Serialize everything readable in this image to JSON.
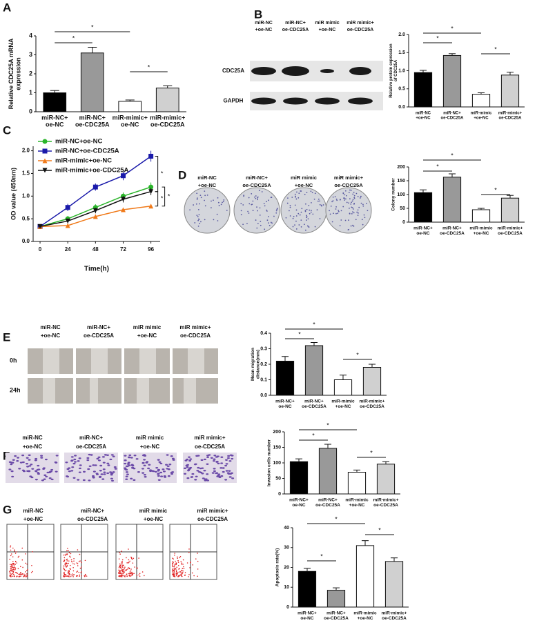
{
  "panel_labels": [
    "A",
    "B",
    "C",
    "D",
    "E",
    "F",
    "G"
  ],
  "blot": {
    "lanes": [
      [
        "miR-NC",
        "+oe-NC"
      ],
      [
        "miR-NC+",
        "oe-CDC25A"
      ],
      [
        "miR mimic",
        "+oe-NC"
      ],
      [
        "miR mimic+",
        "oe-CDC25A"
      ]
    ],
    "rows": [
      "CDC25A",
      "GAPDH"
    ]
  },
  "colony_labels": [
    [
      "miR-NC",
      "+oe-NC"
    ],
    [
      "miR-NC+",
      "oe-CDC25A"
    ],
    [
      "miR mimic",
      "+oe-NC"
    ],
    [
      "miR mimic+",
      "oe-CDC25A"
    ]
  ],
  "wound": {
    "lanes": [
      [
        "miR-NC",
        "+oe-NC"
      ],
      [
        "miR-NC+",
        "oe-CDC25A"
      ],
      [
        "miR mimic",
        "+oe-NC"
      ],
      [
        "miR mimic+",
        "oe-CDC25A"
      ]
    ],
    "rows": [
      "0h",
      "24h"
    ]
  },
  "transwell_labels": [
    [
      "miR-NC",
      "+oe-NC"
    ],
    [
      "miR-NC+",
      "oe-CDC25A"
    ],
    [
      "miR mimic",
      "+oe-NC"
    ],
    [
      "miR mimic+",
      "oe-CDC25A"
    ]
  ],
  "flow_labels": [
    [
      "miR-NC",
      "+oe-NC"
    ],
    [
      "miR-NC+",
      "oe-CDC25A"
    ],
    [
      "miR mimic",
      "+oe-NC"
    ],
    [
      "miR mimic+",
      "oe-CDC25A"
    ]
  ],
  "chart_data": [
    {
      "type": "bar",
      "ylabel": [
        "Relative CDC25A mRNA",
        "expression"
      ],
      "categories": [
        [
          "miR-NC+",
          "oe-NC"
        ],
        [
          "miR-NC+",
          "oe-CDC25A"
        ],
        [
          "miR-mimic+",
          "oe-NC"
        ],
        [
          "miR-mimic+",
          "oe-CDC25A"
        ]
      ],
      "values": [
        1.0,
        3.1,
        0.55,
        1.25
      ],
      "errors": [
        0.12,
        0.3,
        0.07,
        0.12
      ],
      "colors": [
        "#000000",
        "#999999",
        "#ffffff",
        "#d0d0d0"
      ],
      "ylim": [
        0,
        4
      ],
      "yticks": [
        0,
        1,
        2,
        3,
        4
      ],
      "annotations": [
        "*",
        "*",
        "*"
      ]
    },
    {
      "type": "bar",
      "ylabel": [
        "Relative protein expression",
        "of CDC25A"
      ],
      "categories": [
        [
          "miR-NC",
          "+oe-NC"
        ],
        [
          "miR-NC+",
          "oe-CDC25A"
        ],
        [
          "miR-mimic",
          "+oe-NC"
        ],
        [
          "miR-mimic+",
          "oe-CDC25A"
        ]
      ],
      "values": [
        0.95,
        1.42,
        0.35,
        0.88
      ],
      "errors": [
        0.06,
        0.05,
        0.04,
        0.08
      ],
      "colors": [
        "#000000",
        "#999999",
        "#ffffff",
        "#d0d0d0"
      ],
      "ylim": [
        0,
        2
      ],
      "yticks": [
        {
          "value": 0,
          "label": "0.0"
        },
        0.5,
        {
          "value": 1,
          "label": "1.0"
        },
        1.5,
        {
          "value": 2,
          "label": "2.0"
        }
      ],
      "annotations": [
        "*",
        "*",
        "*"
      ]
    },
    {
      "type": "line",
      "ylabel": [
        "OD value (450nm)"
      ],
      "xlabel": "Time(h)",
      "x": [
        0,
        24,
        48,
        72,
        96
      ],
      "xlim": [
        -6,
        104
      ],
      "xticks": [
        0,
        24,
        48,
        72,
        96
      ],
      "ylim": [
        0,
        2.1
      ],
      "yticks": [
        {
          "value": 0,
          "label": "0.0"
        },
        0.5,
        {
          "value": 1,
          "label": "1.0"
        },
        1.5,
        {
          "value": 2,
          "label": "2.0"
        }
      ],
      "series": [
        {
          "name": "miR-NC+oe-NC",
          "color": "#2bb52b",
          "marker": "circle",
          "values": [
            0.33,
            0.5,
            0.75,
            1.0,
            1.2
          ],
          "errors": [
            0.04,
            0.06,
            0.07,
            0.08,
            0.1
          ]
        },
        {
          "name": "miR-NC+oe-CDC25A",
          "color": "#1a1aaa",
          "marker": "square",
          "values": [
            0.33,
            0.75,
            1.2,
            1.45,
            1.88
          ],
          "errors": [
            0.04,
            0.08,
            0.08,
            0.1,
            0.12
          ]
        },
        {
          "name": "miR-mimic+oe-NC",
          "color": "#f07a1a",
          "marker": "triangle-up",
          "values": [
            0.33,
            0.35,
            0.55,
            0.7,
            0.78
          ],
          "errors": [
            0.03,
            0.04,
            0.04,
            0.04,
            0.04
          ]
        },
        {
          "name": "miR-mimic+oe-CDC25A",
          "color": "#111111",
          "marker": "triangle-down",
          "values": [
            0.33,
            0.45,
            0.68,
            0.93,
            1.1
          ],
          "errors": [
            0.04,
            0.05,
            0.06,
            0.07,
            0.08
          ]
        }
      ],
      "annotations": [
        "*",
        "*",
        "*"
      ]
    },
    {
      "type": "bar",
      "ylabel": [
        "Colony number"
      ],
      "categories": [
        [
          "miR-NC+",
          "oe-NC"
        ],
        [
          "miR-NC+",
          "oe-CDC25A"
        ],
        [
          "miR-mimic",
          "+oe-NC"
        ],
        [
          "miR-mimic+",
          "oe-CDC25A"
        ]
      ],
      "values": [
        107,
        163,
        45,
        87
      ],
      "errors": [
        10,
        12,
        5,
        10
      ],
      "colors": [
        "#000000",
        "#999999",
        "#ffffff",
        "#d0d0d0"
      ],
      "ylim": [
        0,
        200
      ],
      "yticks": [
        0,
        50,
        100,
        150,
        200
      ],
      "annotations": [
        "*",
        "*",
        "*"
      ]
    },
    {
      "type": "bar",
      "ylabel": [
        "Mean  migration",
        "distance(mm)"
      ],
      "categories": [
        [
          "miR-NC+",
          "oe-NC"
        ],
        [
          "miR-NC+",
          "oe-CDC25A"
        ],
        [
          "miR-mimic",
          "+oe-NC"
        ],
        [
          "miR-mimic+",
          "oe-CDC25A"
        ]
      ],
      "values": [
        0.22,
        0.32,
        0.1,
        0.18
      ],
      "errors": [
        0.03,
        0.02,
        0.03,
        0.02
      ],
      "colors": [
        "#000000",
        "#999999",
        "#ffffff",
        "#d0d0d0"
      ],
      "ylim": [
        0,
        0.4
      ],
      "yticks": [
        {
          "value": 0,
          "label": "0.0"
        },
        0.1,
        0.2,
        0.3,
        0.4
      ],
      "annotations": [
        "*",
        "*",
        "*"
      ]
    },
    {
      "type": "bar",
      "ylabel": [
        "Invasion cells number"
      ],
      "categories": [
        [
          "miR-NC+",
          "oe-NC"
        ],
        [
          "miR-NC+",
          "oe-CDC25A"
        ],
        [
          "miR-mimic",
          "+oe-NC"
        ],
        [
          "miR-mimic+",
          "oe-CDC25A"
        ]
      ],
      "values": [
        104,
        147,
        70,
        96
      ],
      "errors": [
        9,
        13,
        7,
        8
      ],
      "colors": [
        "#000000",
        "#999999",
        "#ffffff",
        "#d0d0d0"
      ],
      "ylim": [
        0,
        200
      ],
      "yticks": [
        0,
        50,
        100,
        150,
        200
      ],
      "annotations": [
        "*",
        "*",
        "*"
      ]
    },
    {
      "type": "bar",
      "ylabel": [
        "Apoptosis rate(%)"
      ],
      "categories": [
        [
          "miR-NC+",
          "oe-NC"
        ],
        [
          "miR-NC+",
          "oe-CDC25A"
        ],
        [
          "miR-mimic",
          "+oe-NC"
        ],
        [
          "miR-mimic+",
          "oe-CDC25A"
        ]
      ],
      "values": [
        18,
        8.5,
        31,
        23
      ],
      "errors": [
        1.5,
        1.2,
        2.5,
        1.8
      ],
      "colors": [
        "#000000",
        "#999999",
        "#ffffff",
        "#d0d0d0"
      ],
      "ylim": [
        0,
        40
      ],
      "yticks": [
        0,
        10,
        20,
        30,
        40
      ],
      "annotations": [
        "*",
        "*",
        "*"
      ]
    }
  ]
}
